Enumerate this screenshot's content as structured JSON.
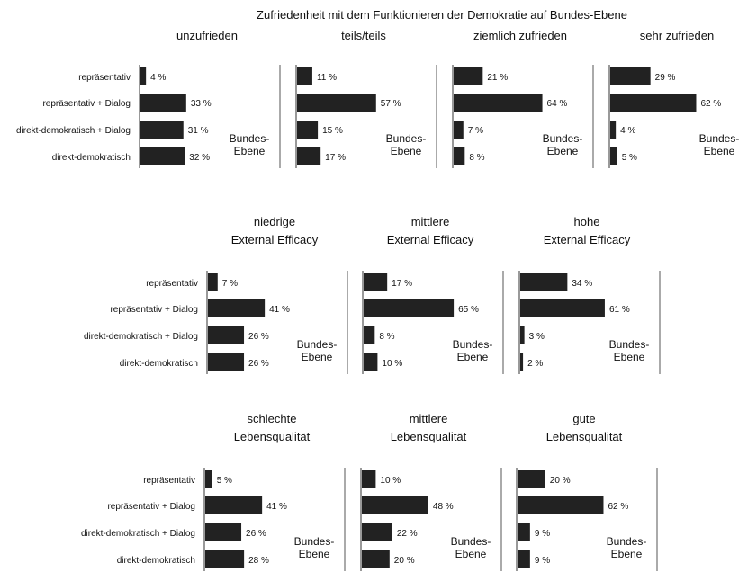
{
  "main_title": "Zufriedenheit mit dem Funktionieren der Demokratie auf Bundes-Ebene",
  "categories": [
    "repräsentativ",
    "repräsentativ + Dialog",
    "direkt-demokratisch + Dialog",
    "direkt-demokratisch"
  ],
  "panel_note": [
    "Bundes-",
    "Ebene"
  ],
  "value_suffix": " %",
  "colors": {
    "bar": "#222222",
    "axis": "#333333",
    "text": "#111111"
  },
  "chart_data": [
    {
      "type": "bar",
      "title": [
        "unzufrieden"
      ],
      "values": [
        4,
        33,
        31,
        32
      ]
    },
    {
      "type": "bar",
      "title": [
        "teils/teils"
      ],
      "values": [
        11,
        57,
        15,
        17
      ]
    },
    {
      "type": "bar",
      "title": [
        "ziemlich zufrieden"
      ],
      "values": [
        21,
        64,
        7,
        8
      ]
    },
    {
      "type": "bar",
      "title": [
        "sehr zufrieden"
      ],
      "values": [
        29,
        62,
        4,
        5
      ]
    },
    {
      "type": "bar",
      "title": [
        "niedrige",
        "External Efficacy"
      ],
      "values": [
        7,
        41,
        26,
        26
      ]
    },
    {
      "type": "bar",
      "title": [
        "mittlere",
        "External Efficacy"
      ],
      "values": [
        17,
        65,
        8,
        10
      ]
    },
    {
      "type": "bar",
      "title": [
        "hohe",
        "External Efficacy"
      ],
      "values": [
        34,
        61,
        3,
        2
      ]
    },
    {
      "type": "bar",
      "title": [
        "schlechte",
        "Lebensqualität"
      ],
      "values": [
        5,
        41,
        26,
        28
      ]
    },
    {
      "type": "bar",
      "title": [
        "mittlere",
        "Lebensqualität"
      ],
      "values": [
        10,
        48,
        22,
        20
      ]
    },
    {
      "type": "bar",
      "title": [
        "gute",
        "Lebensqualität"
      ],
      "values": [
        20,
        62,
        9,
        9
      ]
    }
  ]
}
